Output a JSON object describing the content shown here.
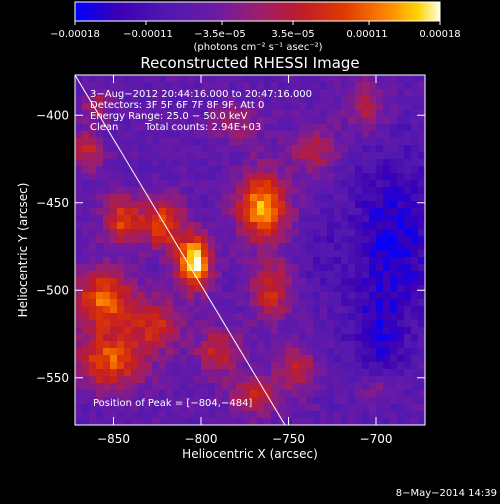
{
  "chart_data": {
    "type": "heatmap",
    "title": "Reconstructed RHESSI Image",
    "xlabel": "Heliocentric X (arcsec)",
    "ylabel": "Heliocentric Y (arcsec)",
    "xlim": [
      -872,
      -672
    ],
    "ylim": [
      -577,
      -377
    ],
    "x_ticks": [
      -850,
      -800,
      -750,
      -700
    ],
    "x_tick_labels": [
      "−850",
      "−800",
      "−750",
      "−700"
    ],
    "y_ticks": [
      -550,
      -500,
      -450,
      -400
    ],
    "y_tick_labels": [
      "−550",
      "−500",
      "−450",
      "−400"
    ],
    "colorbar": {
      "range": [
        -0.00018,
        0.00018
      ],
      "ticks": [
        -0.00018,
        -0.00011,
        -3.5e-05,
        3.5e-05,
        0.00011,
        0.00018
      ],
      "tick_labels": [
        "−0.00018",
        "−0.00011",
        "−3.5e−05",
        "3.5e−05",
        "0.00011",
        "0.00018"
      ],
      "unit_text": "(photons cm⁻² s⁻¹ asec⁻²)",
      "colors": [
        "#0000ff",
        "#3c00b4",
        "#6a1aa6",
        "#9a1e6e",
        "#c01c2a",
        "#e03a00",
        "#ff8a00",
        "#ffd400",
        "#ffffe6"
      ]
    },
    "annotations": {
      "time_range": "3−Aug−2012 20:44:16.000 to 20:47:16.000",
      "detectors": "Detectors: 3F 5F 6F 7F 8F 9F, Att 0",
      "energy_range": "Energy Range: 25.0 − 50.0 keV",
      "algorithm": "Clean",
      "total_counts": "Total counts: 2.94E+03",
      "peak": "Position of Peak = [−804,−484]"
    },
    "limb_line": [
      [
        -872,
        -377
      ],
      [
        -752,
        -577
      ]
    ],
    "sources": [
      {
        "x": -804,
        "y": -484,
        "sx": 7,
        "sy": 11,
        "amp": 1.0
      },
      {
        "x": -765,
        "y": -452,
        "sx": 10,
        "sy": 14,
        "amp": 0.85
      },
      {
        "x": -822,
        "y": -462,
        "sx": 8,
        "sy": 10,
        "amp": 0.65
      },
      {
        "x": -845,
        "y": -460,
        "sx": 8,
        "sy": 10,
        "amp": 0.6
      },
      {
        "x": -855,
        "y": -505,
        "sx": 12,
        "sy": 12,
        "amp": 0.7
      },
      {
        "x": -852,
        "y": -540,
        "sx": 14,
        "sy": 12,
        "amp": 0.65
      },
      {
        "x": -825,
        "y": -520,
        "sx": 10,
        "sy": 10,
        "amp": 0.5
      },
      {
        "x": -790,
        "y": -535,
        "sx": 9,
        "sy": 9,
        "amp": 0.45
      },
      {
        "x": -760,
        "y": -500,
        "sx": 8,
        "sy": 12,
        "amp": 0.5
      },
      {
        "x": -770,
        "y": -560,
        "sx": 10,
        "sy": 8,
        "amp": 0.45
      },
      {
        "x": -745,
        "y": -545,
        "sx": 8,
        "sy": 10,
        "amp": 0.4
      },
      {
        "x": -735,
        "y": -420,
        "sx": 10,
        "sy": 10,
        "amp": 0.35
      },
      {
        "x": -705,
        "y": -395,
        "sx": 8,
        "sy": 10,
        "amp": 0.4
      },
      {
        "x": -865,
        "y": -420,
        "sx": 6,
        "sy": 8,
        "amp": 0.45
      },
      {
        "x": -860,
        "y": -395,
        "sx": 6,
        "sy": 6,
        "amp": 0.35
      },
      {
        "x": -780,
        "y": -405,
        "sx": 9,
        "sy": 8,
        "amp": 0.3
      },
      {
        "x": -700,
        "y": -555,
        "sx": 8,
        "sy": 8,
        "amp": 0.25
      }
    ],
    "negative_regions": [
      {
        "x": -690,
        "y": -470,
        "sx": 18,
        "sy": 35,
        "amp": 0.9
      },
      {
        "x": -700,
        "y": -530,
        "sx": 12,
        "sy": 20,
        "amp": 0.6
      },
      {
        "x": -730,
        "y": -480,
        "sx": 8,
        "sy": 14,
        "amp": 0.3
      }
    ]
  },
  "footer": {
    "timestamp": "8−May−2014 14:39"
  }
}
